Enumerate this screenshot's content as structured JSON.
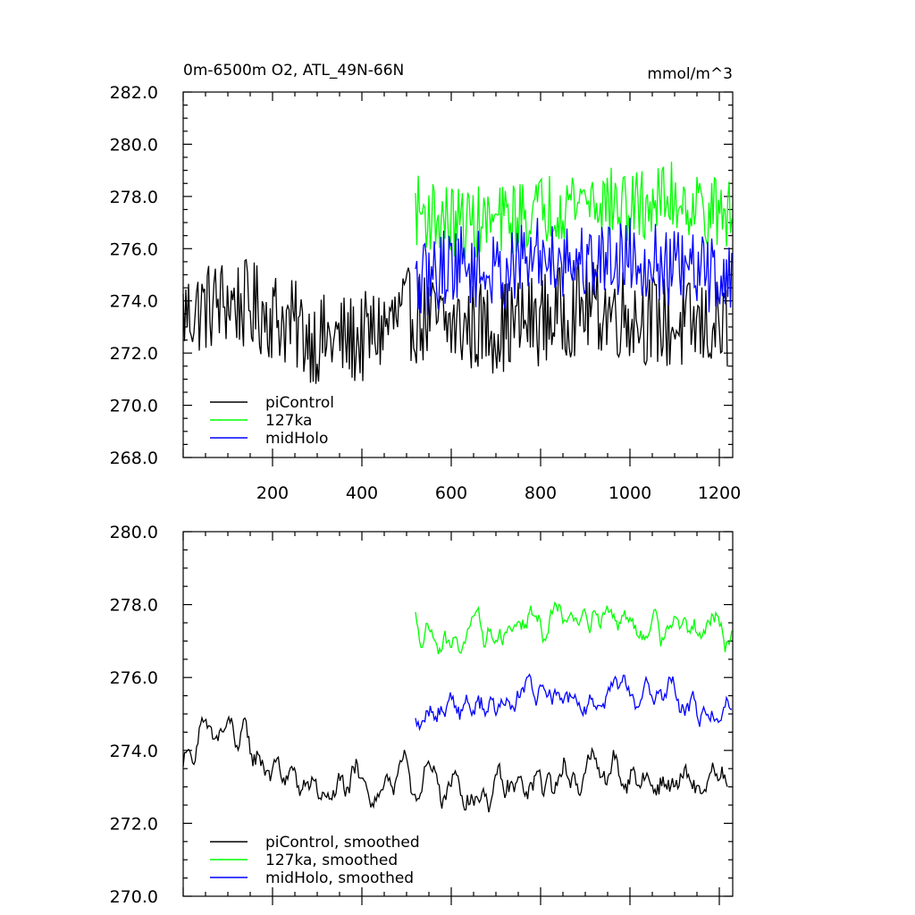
{
  "chart_data": [
    {
      "type": "line",
      "title": "0m-6500m O2, ATL_49N-66N",
      "units": "mmol/m^3",
      "xlim": [
        0,
        1230
      ],
      "ylim": [
        268.0,
        282.0
      ],
      "x_ticks": [
        200,
        400,
        600,
        800,
        1000,
        1200
      ],
      "x_tick_labels": [
        "200",
        "400",
        "600",
        "800",
        "1000",
        "1200"
      ],
      "y_ticks": [
        268.0,
        270.0,
        272.0,
        274.0,
        276.0,
        278.0,
        280.0,
        282.0
      ],
      "y_tick_labels": [
        "268.0",
        "270.0",
        "272.0",
        "274.0",
        "276.0",
        "278.0",
        "280.0",
        "282.0"
      ],
      "legend_placement": "bottom-left",
      "series": [
        {
          "name": "piControl",
          "color": "#000000",
          "x_start": 0,
          "x_end": 1220,
          "mean": 273.3,
          "amp": 1.8,
          "x": [
            0,
            100,
            200,
            300,
            400,
            500,
            600,
            700,
            800,
            900,
            1000,
            1100,
            1200
          ],
          "values": [
            273.5,
            274.0,
            273.5,
            272.5,
            272.5,
            273.5,
            273.0,
            273.0,
            273.3,
            273.8,
            273.5,
            273.0,
            273.0
          ]
        },
        {
          "name": "127ka",
          "color": "#00ff00",
          "x_start": 520,
          "x_end": 1228,
          "mean": 277.3,
          "amp": 1.4,
          "x": [
            520,
            600,
            700,
            800,
            900,
            1000,
            1100,
            1200
          ],
          "values": [
            277.5,
            277.0,
            277.0,
            277.5,
            278.0,
            277.5,
            278.0,
            277.3
          ]
        },
        {
          "name": "midHolo",
          "color": "#0000ff",
          "x_start": 520,
          "x_end": 1228,
          "mean": 275.5,
          "amp": 1.5,
          "x": [
            520,
            600,
            700,
            800,
            900,
            1000,
            1100,
            1200
          ],
          "values": [
            274.5,
            275.5,
            275.0,
            275.8,
            275.5,
            275.8,
            275.2,
            275.0
          ]
        }
      ]
    },
    {
      "type": "line",
      "xlim": [
        0,
        1230
      ],
      "ylim": [
        270.0,
        280.0
      ],
      "y_ticks": [
        270.0,
        272.0,
        274.0,
        276.0,
        278.0,
        280.0
      ],
      "y_tick_labels": [
        "270.0",
        "272.0",
        "274.0",
        "276.0",
        "278.0",
        "280.0"
      ],
      "legend_placement": "bottom-left",
      "series": [
        {
          "name": "piControl, smoothed",
          "color": "#000000",
          "x_start": 0,
          "x_end": 1220,
          "mean": 273.3,
          "amp": 1.2,
          "x": [
            0,
            100,
            200,
            300,
            400,
            500,
            600,
            700,
            800,
            900,
            1000,
            1100,
            1200
          ],
          "values": [
            274.0,
            274.5,
            273.5,
            272.8,
            273.0,
            273.2,
            273.0,
            272.8,
            273.0,
            273.5,
            273.3,
            273.0,
            273.0
          ]
        },
        {
          "name": "127ka, smoothed",
          "color": "#00ff00",
          "x_start": 520,
          "x_end": 1228,
          "mean": 277.2,
          "amp": 1.0,
          "x": [
            520,
            600,
            700,
            800,
            900,
            1000,
            1100,
            1200
          ],
          "values": [
            277.5,
            277.0,
            277.2,
            277.5,
            278.0,
            277.5,
            277.5,
            277.2
          ]
        },
        {
          "name": "midHolo, smoothed",
          "color": "#0000ff",
          "x_start": 520,
          "x_end": 1228,
          "mean": 275.5,
          "amp": 1.0,
          "x": [
            520,
            600,
            700,
            800,
            900,
            1000,
            1100,
            1200
          ],
          "values": [
            274.5,
            275.5,
            275.2,
            275.8,
            275.5,
            275.8,
            275.3,
            275.0
          ]
        }
      ]
    }
  ]
}
